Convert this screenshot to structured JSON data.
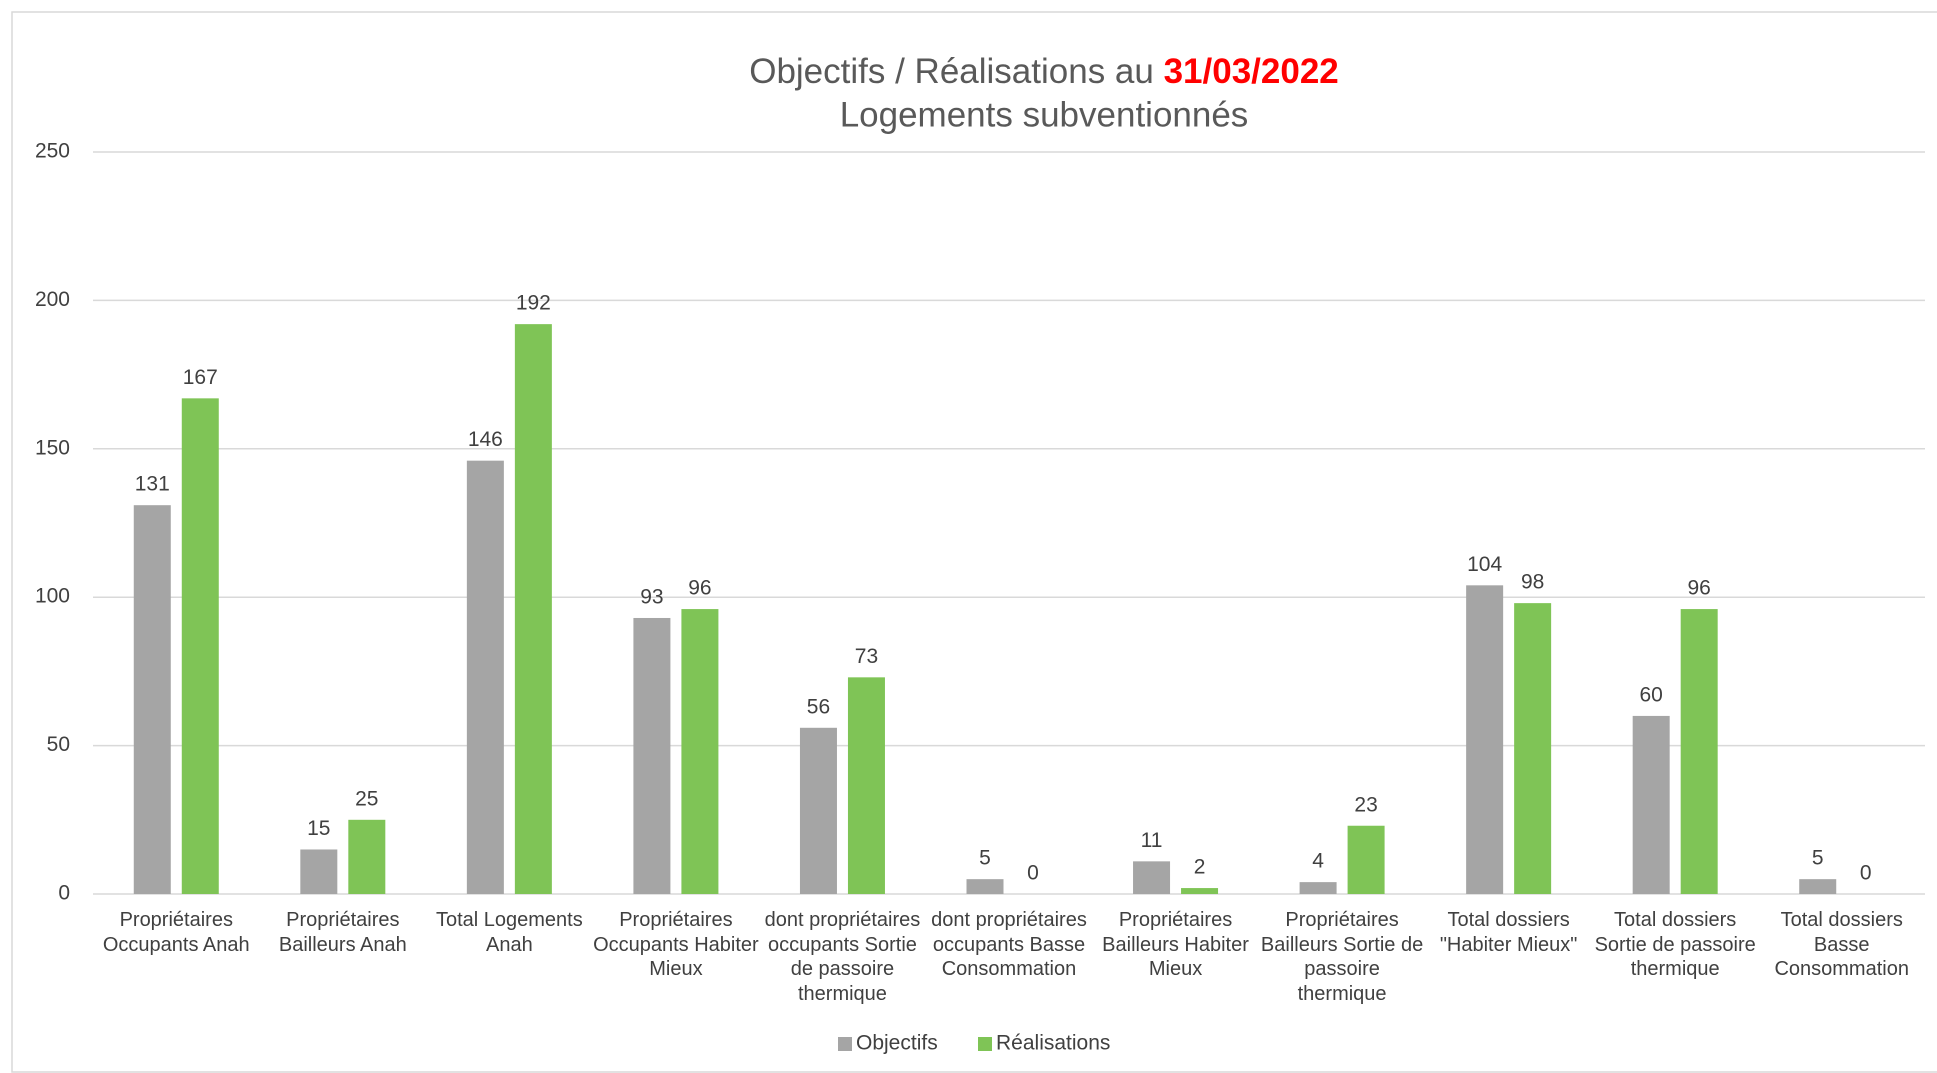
{
  "chart_data": {
    "type": "bar",
    "title": [
      "Objectifs / Réalisations au",
      "31/03/2022"
    ],
    "subtitle": "Logements subventionnés",
    "categories": [
      "Propriétaires Occupants Anah",
      "Propriétaires Bailleurs Anah",
      "Total Logements Anah",
      "Propriétaires Occupants Habiter Mieux",
      "dont propriétaires occupants Sortie de passoire thermique",
      "dont propriétaires occupants Basse Consommation",
      "Propriétaires Bailleurs Habiter Mieux",
      "Propriétaires Bailleurs Sortie de passoire thermique",
      "Total dossiers \"Habiter Mieux\"",
      "Total dossiers Sortie de passoire thermique",
      "Total dossiers Basse Consommation"
    ],
    "series": [
      {
        "name": "Objectifs",
        "color": "#a5a5a5",
        "values": [
          131,
          15,
          146,
          93,
          56,
          5,
          11,
          4,
          104,
          60,
          5
        ]
      },
      {
        "name": "Réalisations",
        "color": "#7fc456",
        "values": [
          167,
          25,
          192,
          96,
          73,
          0,
          2,
          23,
          98,
          96,
          0
        ]
      }
    ],
    "ylim": [
      0,
      250
    ],
    "yticks": [
      0,
      50,
      100,
      150,
      200,
      250
    ],
    "grid": true,
    "legend": "bottom"
  }
}
